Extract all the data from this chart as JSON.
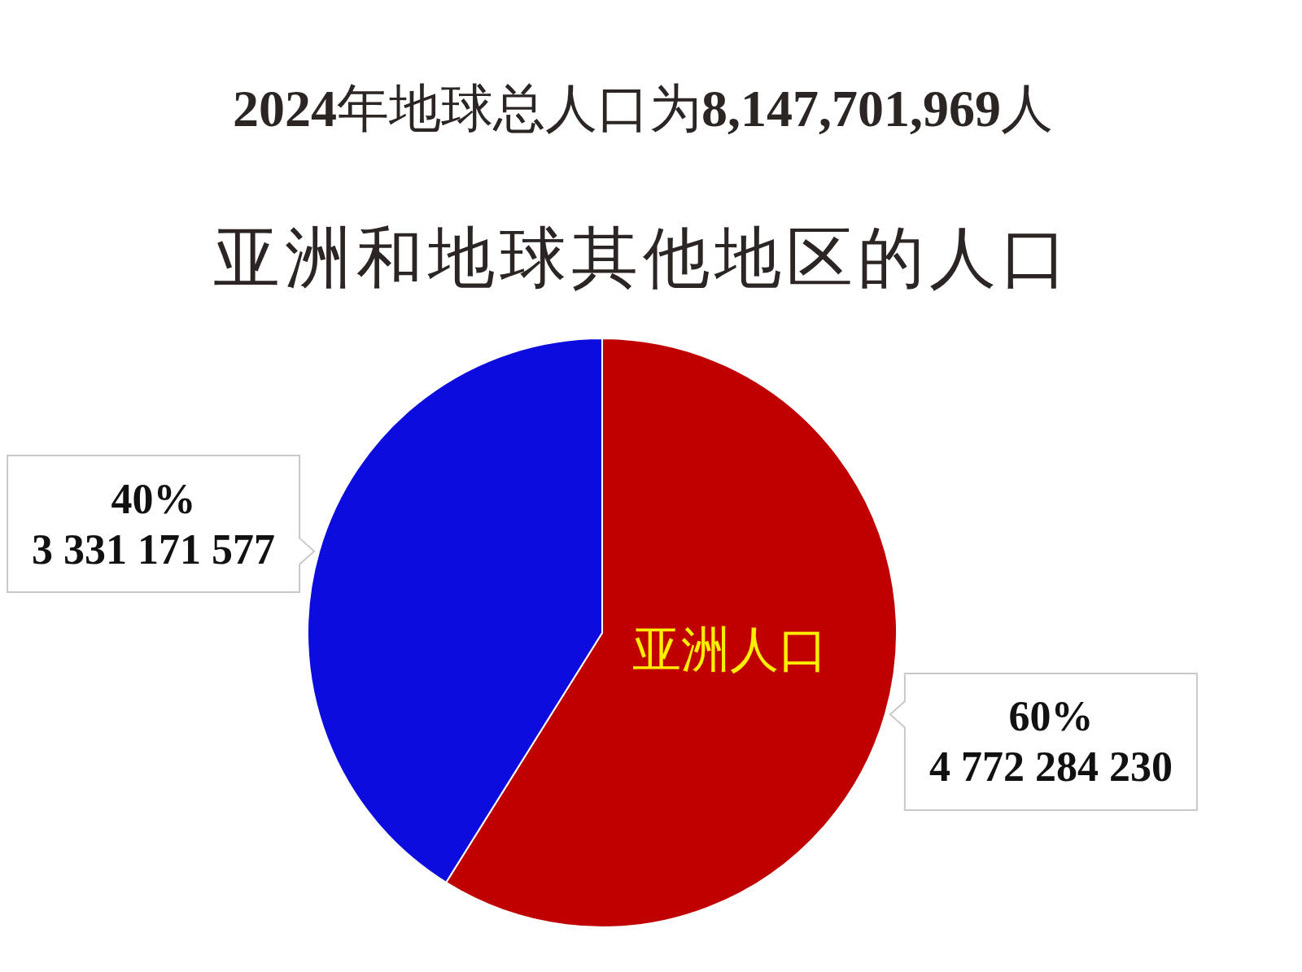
{
  "chart_data": {
    "type": "pie",
    "title": "2024年地球总人口为8,147,701,969人",
    "subtitle": "亚洲和地球其他地区的人口",
    "categories": [
      "亚洲人口",
      null
    ],
    "values": [
      4772284230,
      3331171577
    ],
    "colors": [
      "#c00000",
      "#0c0cdf"
    ],
    "value_labels": [
      "60%\n4 772 284 230",
      "40%\n3 331 171 577"
    ]
  }
}
